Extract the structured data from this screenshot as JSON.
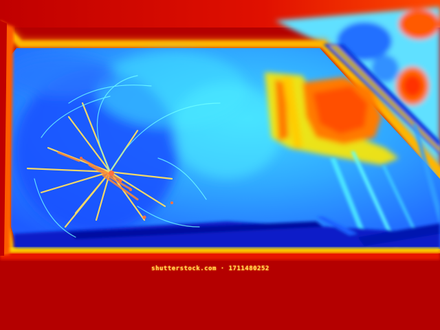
{
  "image": {
    "subject": "thermal-windshield",
    "watermark": "shutterstock.com · 1711480252",
    "colors": {
      "hot": "#b00000",
      "warm_red": "#e02000",
      "orange": "#ff7a00",
      "yellow": "#ffe000",
      "cyan": "#40e8ff",
      "light_blue": "#30a0ff",
      "blue": "#1e5cff",
      "deep_blue": "#0018c8"
    }
  }
}
